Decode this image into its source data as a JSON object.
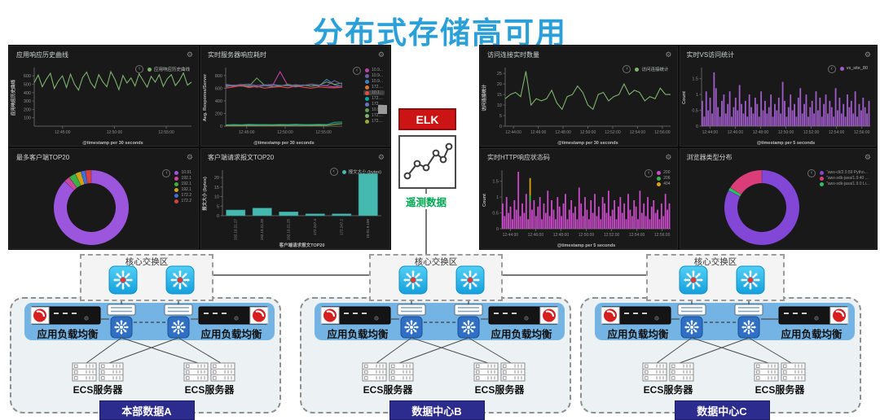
{
  "title": {
    "text": "分布式存储高可用",
    "color": "#2ba0d8"
  },
  "elk": {
    "label": "ELK",
    "telemetry_label": "遥测数据",
    "box_color": "#cc1414",
    "telemetry_color": "#00a651"
  },
  "network": {
    "core_label": "核心交换区",
    "lb_label": "应用负载均衡",
    "ecs_label": "ECS服务器",
    "banner_color": "#2c2b8e",
    "datacenters": [
      {
        "name": "本部数据A"
      },
      {
        "name": "数据中心B"
      },
      {
        "name": "数据中心C"
      }
    ]
  },
  "chart_data": [
    {
      "type": "line",
      "title": "应用响应历史曲线",
      "ylabel": "应用响应历史曲线",
      "xlabel": "@timestamp per 30 seconds",
      "ylim": [
        0,
        680
      ],
      "yticks": [
        100,
        200,
        300,
        400,
        500,
        600
      ],
      "xticks": [
        "12:45:00",
        "12:50:00",
        "12:55:00"
      ],
      "legend_pos": "inline",
      "legend": [
        {
          "label": "应用响应历史曲线",
          "color": "#7eb26d"
        }
      ],
      "series": [
        {
          "name": "应用响应历史曲线",
          "color": "#7eb26d",
          "values": [
            520,
            610,
            470,
            560,
            630,
            450,
            540,
            600,
            460,
            620,
            500,
            430,
            580,
            645,
            520,
            455,
            615,
            530,
            470,
            650,
            560,
            435,
            605,
            515,
            575,
            480,
            625,
            545,
            465,
            595,
            525,
            615,
            475,
            565,
            615,
            485,
            545,
            635,
            490,
            525
          ]
        }
      ]
    },
    {
      "type": "line",
      "title": "实时服务器响应耗时",
      "ylabel": "Avg. Response/Server",
      "xlabel": "@timestamp per 30 seconds",
      "ylim": [
        0,
        900
      ],
      "yticks": [
        0,
        200,
        400,
        600,
        800
      ],
      "xticks": [
        "12:45:00",
        "12:50:00",
        "12:55:00"
      ],
      "legend_pos": "column",
      "legend": [
        {
          "label": "10.9...",
          "color": "#ba43a9"
        },
        {
          "label": "10.9...",
          "color": "#705da0"
        },
        {
          "label": "10.9...",
          "color": "#447ebc"
        },
        {
          "label": "172....",
          "color": "#e0752d"
        },
        {
          "label": "10.1...",
          "color": "#e24d42",
          "highlight": true
        },
        {
          "label": "172....",
          "color": "#00a9a5"
        },
        {
          "label": "172....",
          "color": "#6971c4"
        },
        {
          "label": "10.9...",
          "color": "#629e51"
        },
        {
          "label": "172....",
          "color": "#7eb26d"
        },
        {
          "label": "172....",
          "color": "#9aa838"
        }
      ],
      "series": [
        {
          "color": "#ba43a9",
          "values": [
            640,
            630,
            650,
            620,
            640,
            655,
            635,
            860,
            640,
            620,
            650,
            630,
            645,
            635,
            620,
            640
          ]
        },
        {
          "color": "#447ebc",
          "values": [
            620,
            650,
            630,
            645,
            615,
            640,
            625,
            635,
            650,
            620,
            640,
            660,
            630,
            740,
            650,
            630
          ]
        },
        {
          "color": "#e24d42",
          "values": [
            600,
            620,
            640,
            610,
            630,
            600,
            615,
            625,
            605,
            635,
            615,
            600,
            620,
            610,
            605,
            615
          ]
        },
        {
          "color": "#629e51",
          "values": [
            650,
            640,
            660,
            630,
            760,
            645,
            655,
            635,
            660,
            640,
            650,
            630,
            645,
            700,
            660,
            680
          ]
        },
        {
          "color": "#705da0",
          "values": [
            660,
            645,
            655,
            665,
            640,
            650,
            660,
            645,
            635,
            655,
            645,
            665,
            650,
            640,
            720,
            660
          ]
        },
        {
          "color": "#00a9a5",
          "values": [
            20,
            25,
            22,
            28,
            24,
            26,
            23,
            27,
            25,
            30,
            26,
            24,
            28,
            25,
            60,
            65
          ]
        },
        {
          "color": "#9aa838",
          "values": [
            10,
            12,
            11,
            14,
            12,
            13,
            11,
            15,
            12,
            14,
            13,
            12,
            15,
            13,
            30,
            40
          ]
        }
      ]
    },
    {
      "type": "donut",
      "title": "最多客户端TOP20",
      "legend_pos": "column",
      "legend": [
        {
          "label": "10.91",
          "color": "#9c55dd"
        },
        {
          "label": "192.1",
          "color": "#cf43a1"
        },
        {
          "label": "192.1",
          "color": "#3bb143"
        },
        {
          "label": "192.1",
          "color": "#d1a11b"
        },
        {
          "label": "172.2",
          "color": "#3e6fd9"
        },
        {
          "label": "172.2",
          "color": "#d94040"
        }
      ],
      "values": [
        87.5,
        2.5,
        3,
        2.5,
        2,
        2.5
      ]
    },
    {
      "type": "bar",
      "title": "客户端请求报文TOP20",
      "ylabel": "报文大小 (bytes)",
      "xlabel": "客户端请求报文TOP20",
      "ylim": [
        0,
        23
      ],
      "yticks": [
        0,
        5,
        10,
        15,
        20
      ],
      "categories": [
        "192.19.21.27",
        "192.19.21.26",
        "192.19.21.25",
        "172.247.4",
        "172.247.2",
        "10.91.9.100"
      ],
      "values": [
        3,
        4,
        2,
        1,
        1,
        22
      ],
      "legend_pos": "inline",
      "legend": [
        {
          "label": "报文大小 (bytes)",
          "color": "#45b8b0"
        }
      ],
      "bar_color": "#45b8b0"
    },
    {
      "type": "line",
      "title": "访问连接实时数量",
      "ylabel": "访问连接统计",
      "xlabel": "@timestamp per 30 seconds",
      "ylim": [
        0,
        27
      ],
      "yticks": [
        0,
        5,
        10,
        15,
        20,
        25
      ],
      "xticks": [
        "12:44:00",
        "12:46:00",
        "12:48:00",
        "12:50:00",
        "12:52:00",
        "12:54:00",
        "12:56:00"
      ],
      "legend_pos": "inline",
      "legend": [
        {
          "label": "访问连接统计",
          "color": "#7eb26d"
        }
      ],
      "series": [
        {
          "name": "访问连接统计",
          "color": "#7eb26d",
          "values": [
            13,
            15,
            16,
            14,
            26,
            10,
            13,
            12,
            13,
            17,
            11,
            8,
            14,
            15,
            19,
            16,
            10,
            8,
            15,
            16,
            12,
            14,
            15,
            20,
            15,
            17,
            16,
            12,
            14,
            13,
            18,
            15,
            15
          ]
        }
      ]
    },
    {
      "type": "hist",
      "title": "实时VS访问统计",
      "ylabel": "Count",
      "xlabel": "@timestamp per 5 seconds",
      "ylim": [
        0,
        1.8
      ],
      "yticks": [
        0,
        0.5,
        1,
        1.5
      ],
      "xticks": [
        "12:44:00",
        "12:46:00",
        "12:48:00",
        "12:50:00",
        "12:52:00",
        "12:54:00",
        "12:56:00"
      ],
      "legend_pos": "inline",
      "legend": [
        {
          "label": "vs_site_80",
          "color": "#a15ccb"
        }
      ],
      "bar_color": "#a15ccb",
      "values": [
        0.8,
        0.3,
        1.1,
        0.5,
        0.9,
        0.4,
        1.7,
        1.2,
        0.6,
        0.3,
        0.8,
        1.0,
        0.4,
        0.7,
        1.1,
        0.3,
        0.6,
        0.9,
        0.5,
        1.3,
        0.7,
        0.4,
        0.8,
        0.3,
        1.0,
        0.6,
        0.4,
        0.9,
        0.7,
        0.3,
        1.1,
        0.5,
        0.8,
        0.4,
        0.6,
        1.0,
        0.3,
        0.7,
        0.5,
        0.9,
        0.4,
        1.4,
        0.8,
        0.3,
        0.6,
        1.0,
        0.5,
        0.7,
        0.3,
        0.9,
        1.2,
        0.4,
        0.7,
        1.0,
        0.3,
        0.6,
        0.8,
        0.4,
        1.1,
        0.5,
        0.9,
        0.3,
        0.7,
        1.0,
        0.4,
        0.8,
        0.6,
        0.3,
        1.2,
        0.5,
        0.9,
        0.4,
        0.7,
        0.3,
        1.0,
        0.6,
        0.8,
        0.4,
        1.1,
        0.3,
        0.7,
        0.5,
        0.9,
        0.6,
        0.4,
        0.8
      ]
    },
    {
      "type": "hist",
      "title": "实时HTTP响应状态码",
      "ylabel": "Count",
      "xlabel": "@timestamp per 5 seconds",
      "ylim": [
        0,
        1.8
      ],
      "yticks": [
        0,
        0.5,
        1,
        1.5
      ],
      "xticks": [
        "12:44:00",
        "12:46:00",
        "12:48:00",
        "12:50:00",
        "12:52:00",
        "12:54:00",
        "12:56:00"
      ],
      "legend_pos": "column",
      "legend": [
        {
          "label": "200",
          "color": "#cb4bcb"
        },
        {
          "label": "206",
          "color": "#39b54a"
        },
        {
          "label": "404",
          "color": "#dba119"
        }
      ],
      "bar_color": "#cb4bcb",
      "values": [
        0.8,
        0.4,
        1.0,
        0.5,
        0.7,
        0.3,
        0.9,
        0.6,
        1.8,
        0.4,
        0.8,
        0.5,
        1.1,
        0.3,
        0.85,
        0.6,
        0.9,
        0.4,
        0.7,
        1.0,
        0.3,
        0.8,
        0.5,
        1.2,
        0.4,
        0.9,
        0.6,
        0.3,
        1.0,
        0.7,
        0.4,
        0.8,
        1.1,
        0.3,
        0.6,
        0.9,
        0.5,
        0.7,
        0.3,
        1.3,
        0.8,
        0.4,
        1.0,
        0.6,
        0.3,
        0.9,
        0.5,
        1.1,
        0.4,
        0.7,
        0.3,
        1.0,
        0.8,
        0.5,
        1.2,
        0.4,
        0.6,
        0.9,
        0.3,
        0.7,
        1.0,
        0.5,
        0.8,
        0.3,
        1.1,
        0.6,
        0.4,
        0.9,
        0.7,
        0.3,
        1.2,
        0.5,
        0.8,
        0.4,
        1.0,
        0.3,
        0.7,
        0.9,
        0.5,
        0.6,
        0.3,
        0.8,
        0.4,
        1.1,
        0.6,
        0.8
      ],
      "overlays": [
        {
          "i": 14,
          "v": 1.6,
          "color": "#dba119"
        },
        {
          "i": 14,
          "v": 1.05,
          "color": "#39b54a"
        }
      ]
    },
    {
      "type": "donut",
      "title": "浏览器类型分布",
      "legend_pos": "column",
      "legend": [
        {
          "label": "\"aws-cli/2.0.59 Pytho...",
          "color": "#8247d6"
        },
        {
          "label": "\"aws-sdk-java/1.9.40 ...",
          "color": "#db3d79"
        },
        {
          "label": "\"aws-sdk-java/1.9.0 Li...",
          "color": "#2fbf66"
        }
      ],
      "values": [
        82.5,
        1.5,
        16
      ],
      "slice_colors": [
        "#8247d6",
        "#2fbf66",
        "#db3d79"
      ]
    }
  ]
}
